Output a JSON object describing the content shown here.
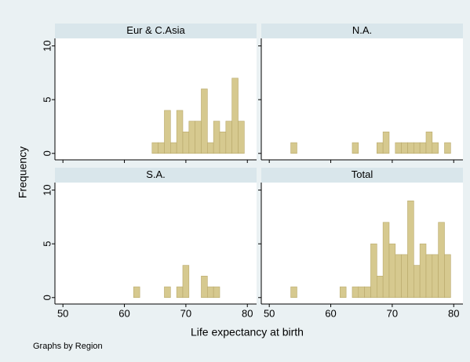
{
  "chart_data": {
    "type": "histogram",
    "x_label": "Life expectancy at birth",
    "y_label": "Frequency",
    "note": "Graphs by Region",
    "bins": [
      53.5,
      54.5,
      55.5,
      56.5,
      57.5,
      58.5,
      59.5,
      60.5,
      61.5,
      62.5,
      63.5,
      64.5,
      65.5,
      66.5,
      67.5,
      68.5,
      69.5,
      70.5,
      71.5,
      72.5,
      73.5,
      74.5,
      75.5,
      76.5,
      77.5,
      78.5,
      79.5
    ],
    "color": "#d6c98f",
    "edge_color": "#b8a86a",
    "xlim": [
      48.7,
      81.5
    ],
    "xticks": [
      50,
      60,
      70,
      80
    ],
    "ylim": [
      -0.6,
      10.7
    ],
    "yticks": [
      0,
      5,
      10
    ],
    "panels": [
      {
        "title": "Eur & C.Asia",
        "counts": [
          0,
          0,
          0,
          0,
          0,
          0,
          0,
          0,
          0,
          0,
          0,
          1,
          1,
          4,
          1,
          4,
          2,
          3,
          3,
          6,
          1,
          3,
          2,
          3,
          7,
          3
        ]
      },
      {
        "title": "N.A.",
        "counts": [
          1,
          0,
          0,
          0,
          0,
          0,
          0,
          0,
          0,
          0,
          1,
          0,
          0,
          0,
          1,
          2,
          0,
          1,
          1,
          1,
          1,
          1,
          2,
          1,
          0,
          1
        ]
      },
      {
        "title": "S.A.",
        "counts": [
          0,
          0,
          0,
          0,
          0,
          0,
          0,
          0,
          1,
          0,
          0,
          0,
          0,
          1,
          0,
          1,
          3,
          0,
          0,
          2,
          1,
          1,
          0,
          0,
          0,
          0
        ]
      },
      {
        "title": "Total",
        "counts": [
          1,
          0,
          0,
          0,
          0,
          0,
          0,
          0,
          1,
          0,
          1,
          1,
          1,
          5,
          2,
          7,
          5,
          4,
          4,
          9,
          3,
          5,
          4,
          4,
          7,
          4
        ]
      }
    ]
  }
}
